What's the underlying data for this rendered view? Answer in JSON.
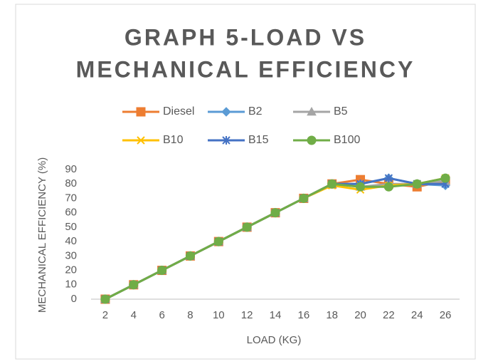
{
  "chart_data": {
    "type": "line",
    "title": [
      "GRAPH 5-LOAD VS",
      "MECHANICAL EFFICIENCY"
    ],
    "x_label": "LOAD (KG)",
    "y_label": "MECHANICAL EFFICIENCY  (%)",
    "categories": [
      2,
      4,
      6,
      8,
      10,
      12,
      14,
      16,
      18,
      20,
      22,
      24,
      26
    ],
    "ylim": [
      0,
      90
    ],
    "yticks": [
      0,
      10,
      20,
      30,
      40,
      50,
      60,
      70,
      80,
      90
    ],
    "grid": false,
    "legend": "top",
    "series": [
      {
        "name": "Diesel",
        "color": "#ed7d31",
        "marker": "square",
        "values": [
          0,
          10,
          20,
          30,
          40,
          50,
          60,
          70,
          80,
          83,
          80,
          78,
          82
        ]
      },
      {
        "name": "B2",
        "color": "#5b9bd5",
        "marker": "diamond",
        "values": [
          0,
          10,
          20,
          30,
          40,
          50,
          60,
          70,
          80,
          80,
          84,
          80,
          79
        ]
      },
      {
        "name": "B5",
        "color": "#a5a5a5",
        "marker": "triangle",
        "values": [
          0,
          10,
          20,
          30,
          40,
          50,
          60,
          70,
          80,
          78,
          80,
          80,
          82
        ]
      },
      {
        "name": "B10",
        "color": "#ffc000",
        "marker": "x",
        "values": [
          0,
          10,
          20,
          30,
          40,
          50,
          60,
          70,
          79,
          76,
          79,
          80,
          84
        ]
      },
      {
        "name": "B15",
        "color": "#4472c4",
        "marker": "star",
        "values": [
          0,
          10,
          20,
          30,
          40,
          50,
          60,
          70,
          80,
          80,
          84,
          80,
          80
        ]
      },
      {
        "name": "B100",
        "color": "#70ad47",
        "marker": "circle",
        "values": [
          0,
          10,
          20,
          30,
          40,
          50,
          60,
          70,
          80,
          78,
          78,
          80,
          84
        ]
      }
    ]
  }
}
